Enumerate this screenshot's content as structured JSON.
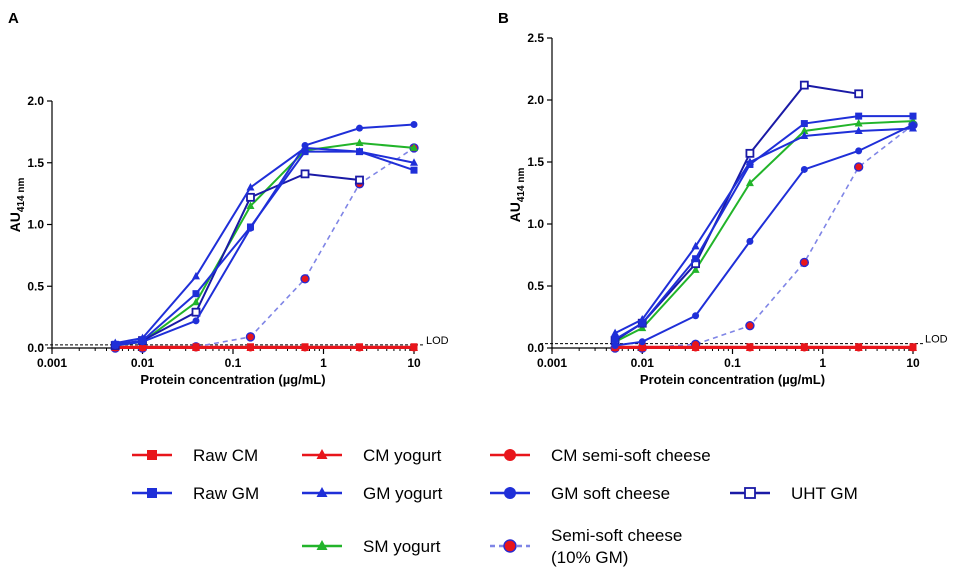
{
  "chart_data": [
    {
      "type": "line",
      "panel": "A",
      "xlabel": "Protein concentration (µg/mL)",
      "ylabel": "AU",
      "ylabel_sub": "414 nm",
      "xscale": "log",
      "xlim": [
        0.001,
        10
      ],
      "ylim": [
        0,
        2.0
      ],
      "xticks": [
        0.001,
        0.01,
        0.1,
        1,
        10
      ],
      "xtick_labels": [
        "0.001",
        "0.01",
        "0.1",
        "1",
        "10"
      ],
      "yticks": [
        0,
        0.5,
        1.0,
        1.5,
        2.0
      ],
      "ytick_labels": [
        "0.0",
        "0.5",
        "1.0",
        "1.5",
        "2.0"
      ],
      "lod": {
        "value": 0.025,
        "label": "LOD"
      },
      "x": [
        0.005,
        0.01,
        0.039,
        0.156,
        0.625,
        2.5,
        10
      ],
      "series": [
        {
          "key": "raw_cm",
          "name": "Raw CM",
          "values": [
            0.01,
            0.01,
            0.01,
            0.01,
            0.01,
            0.01,
            0.01
          ]
        },
        {
          "key": "cm_yogurt",
          "name": "CM yogurt",
          "values": [
            0.0,
            0.0,
            0.0,
            0.0,
            0.0,
            0.0,
            0.0
          ]
        },
        {
          "key": "cm_semisoft",
          "name": "CM semi-soft cheese",
          "values": [
            0.0,
            0.0,
            0.0,
            0.0,
            0.0,
            0.0,
            0.0
          ]
        },
        {
          "key": "raw_gm",
          "name": "Raw GM",
          "values": [
            0.03,
            0.06,
            0.44,
            0.98,
            1.59,
            1.59,
            1.44
          ]
        },
        {
          "key": "gm_yogurt",
          "name": "GM yogurt",
          "values": [
            0.04,
            0.08,
            0.58,
            1.3,
            1.62,
            1.59,
            1.5
          ]
        },
        {
          "key": "gm_soft",
          "name": "GM soft cheese",
          "values": [
            0.02,
            0.05,
            0.22,
            0.97,
            1.64,
            1.78,
            1.81
          ]
        },
        {
          "key": "sm_yogurt",
          "name": "SM yogurt",
          "values": [
            0.02,
            0.05,
            0.37,
            1.15,
            1.6,
            1.66,
            1.62
          ]
        },
        {
          "key": "uht_gm",
          "name": "UHT GM",
          "values": [
            0.02,
            0.06,
            0.29,
            1.22,
            1.41,
            1.36,
            null
          ]
        },
        {
          "key": "semisoft_10gm",
          "name": "Semi-soft cheese (10% GM)",
          "values": [
            0.0,
            0.0,
            0.01,
            0.09,
            0.56,
            1.33,
            1.62
          ]
        }
      ]
    },
    {
      "type": "line",
      "panel": "B",
      "xlabel": "Protein concentration (µg/mL)",
      "ylabel": "AU",
      "ylabel_sub": "414 nm",
      "xscale": "log",
      "xlim": [
        0.001,
        10
      ],
      "ylim": [
        0,
        2.5
      ],
      "xticks": [
        0.001,
        0.01,
        0.1,
        1,
        10
      ],
      "xtick_labels": [
        "0.001",
        "0.01",
        "0.1",
        "1",
        "10"
      ],
      "yticks": [
        0,
        0.5,
        1.0,
        1.5,
        2.0,
        2.5
      ],
      "ytick_labels": [
        "0.0",
        "0.5",
        "1.0",
        "1.5",
        "2.0",
        "2.5"
      ],
      "lod": {
        "value": 0.035,
        "label": "LOD"
      },
      "x": [
        0.005,
        0.01,
        0.039,
        0.156,
        0.625,
        2.5,
        10
      ],
      "series": [
        {
          "key": "raw_cm",
          "name": "Raw CM",
          "values": [
            0.01,
            0.01,
            0.01,
            0.01,
            0.01,
            0.01,
            0.01
          ]
        },
        {
          "key": "cm_yogurt",
          "name": "CM yogurt",
          "values": [
            0.0,
            0.0,
            0.0,
            0.0,
            0.0,
            0.0,
            0.0
          ]
        },
        {
          "key": "cm_semisoft",
          "name": "CM semi-soft cheese",
          "values": [
            0.0,
            0.0,
            0.0,
            0.0,
            0.0,
            0.0,
            0.0
          ]
        },
        {
          "key": "raw_gm",
          "name": "Raw GM",
          "values": [
            0.07,
            0.2,
            0.72,
            1.48,
            1.81,
            1.87,
            1.87
          ]
        },
        {
          "key": "gm_yogurt",
          "name": "GM yogurt",
          "values": [
            0.12,
            0.23,
            0.82,
            1.5,
            1.71,
            1.75,
            1.77
          ]
        },
        {
          "key": "gm_soft",
          "name": "GM soft cheese",
          "values": [
            0.02,
            0.05,
            0.26,
            0.86,
            1.44,
            1.59,
            1.8
          ]
        },
        {
          "key": "sm_yogurt",
          "name": "SM yogurt",
          "values": [
            0.05,
            0.16,
            0.63,
            1.33,
            1.75,
            1.81,
            1.83
          ]
        },
        {
          "key": "uht_gm",
          "name": "UHT GM",
          "values": [
            0.06,
            0.2,
            0.68,
            1.57,
            2.12,
            2.05,
            null
          ]
        },
        {
          "key": "semisoft_10gm",
          "name": "Semi-soft cheese (10% GM)",
          "values": [
            0.0,
            0.0,
            0.03,
            0.18,
            0.69,
            1.46,
            1.8
          ]
        }
      ]
    }
  ],
  "legend": {
    "items": [
      {
        "key": "raw_cm",
        "label": "Raw CM",
        "lines": [
          "Raw CM"
        ]
      },
      {
        "key": "cm_yogurt",
        "label": "CM yogurt",
        "lines": [
          "CM yogurt"
        ]
      },
      {
        "key": "cm_semisoft",
        "label": "CM semi-soft cheese",
        "lines": [
          "CM semi-soft cheese"
        ]
      },
      {
        "key": "raw_gm",
        "label": "Raw GM",
        "lines": [
          "Raw GM"
        ]
      },
      {
        "key": "gm_yogurt",
        "label": "GM yogurt",
        "lines": [
          "GM yogurt"
        ]
      },
      {
        "key": "gm_soft",
        "label": "GM soft cheese",
        "lines": [
          "GM soft cheese"
        ]
      },
      {
        "key": "uht_gm",
        "label": "UHT GM",
        "lines": [
          "UHT GM"
        ]
      },
      {
        "key": "sm_yogurt",
        "label": "SM yogurt",
        "lines": [
          "SM yogurt"
        ]
      },
      {
        "key": "semisoft_10gm",
        "label": "Semi-soft cheese (10% GM)",
        "lines": [
          "Semi-soft cheese",
          "(10% GM)"
        ]
      }
    ]
  },
  "styles": {
    "raw_cm": {
      "color": "#e8151b",
      "marker": "square",
      "dashed": false
    },
    "cm_yogurt": {
      "color": "#e8151b",
      "marker": "triangle",
      "dashed": false
    },
    "cm_semisoft": {
      "color": "#e8151b",
      "marker": "circle",
      "dashed": false
    },
    "raw_gm": {
      "color": "#1f2fd8",
      "marker": "square",
      "dashed": false
    },
    "gm_yogurt": {
      "color": "#1f2fd8",
      "marker": "triangle",
      "dashed": false
    },
    "gm_soft": {
      "color": "#1f2fd8",
      "marker": "circle",
      "dashed": false
    },
    "sm_yogurt": {
      "color": "#22b42a",
      "marker": "triangle",
      "dashed": false
    },
    "uht_gm": {
      "color": "#1a1aa6",
      "marker": "open-square",
      "dashed": false
    },
    "semisoft_10gm": {
      "color": "#7f85e6",
      "marker": "circle-red-fill",
      "dashed": true,
      "fill": "#e8151b",
      "stroke": "#2a2ad0"
    }
  }
}
